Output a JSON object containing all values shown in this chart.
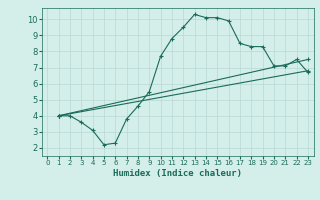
{
  "xlabel": "Humidex (Indice chaleur)",
  "ylabel": "",
  "background_color": "#d4eeea",
  "grid_color": "#b8d8d4",
  "line_color": "#1a6b5a",
  "xlim": [
    -0.5,
    23.5
  ],
  "ylim": [
    1.5,
    10.7
  ],
  "xticks": [
    0,
    1,
    2,
    3,
    4,
    5,
    6,
    7,
    8,
    9,
    10,
    11,
    12,
    13,
    14,
    15,
    16,
    17,
    18,
    19,
    20,
    21,
    22,
    23
  ],
  "yticks": [
    2,
    3,
    4,
    5,
    6,
    7,
    8,
    9,
    10
  ],
  "line1_x": [
    1,
    2,
    3,
    4,
    5,
    6,
    7,
    8,
    9,
    10,
    11,
    12,
    13,
    14,
    15,
    16,
    17,
    18,
    19,
    20,
    21,
    22,
    23
  ],
  "line1_y": [
    4.0,
    4.0,
    3.6,
    3.1,
    2.2,
    2.3,
    3.8,
    4.6,
    5.5,
    7.7,
    8.8,
    9.5,
    10.3,
    10.1,
    10.1,
    9.9,
    8.5,
    8.3,
    8.3,
    7.1,
    7.1,
    7.5,
    6.7
  ],
  "line2_x": [
    1,
    23
  ],
  "line2_y": [
    4.0,
    6.8
  ],
  "line3_x": [
    1,
    23
  ],
  "line3_y": [
    4.0,
    7.5
  ]
}
